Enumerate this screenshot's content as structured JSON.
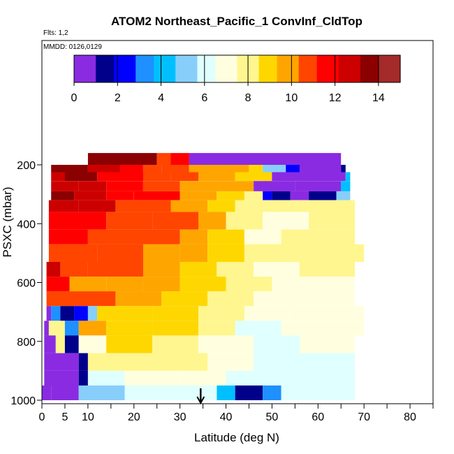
{
  "chart_data": {
    "type": "heatmap",
    "title": "ATOM2 Northeast_Pacific_1 ConvInf_CldTop",
    "annotations": [
      "Flts: 1,2",
      "MMDD: 0126,0129"
    ],
    "xlabel": "Latitude (deg N)",
    "ylabel": "PSXC (mbar)",
    "xlim": [
      0,
      85
    ],
    "ylim": [
      1000,
      50
    ],
    "y_reversed": true,
    "x_ticks": [
      0,
      5,
      10,
      20,
      30,
      40,
      50,
      60,
      70,
      80
    ],
    "x_tick_labels": [
      "0",
      "5",
      "10",
      "20",
      "30",
      "40",
      "50",
      "60",
      "70",
      "80"
    ],
    "x_minor_ticks": [
      15,
      25,
      35,
      45,
      55,
      65,
      75,
      85
    ],
    "y_ticks": [
      200,
      400,
      600,
      800,
      1000
    ],
    "y_tick_labels": [
      "200",
      "400",
      "600",
      "800",
      "1000"
    ],
    "colorbar": {
      "min": 0,
      "max": 15,
      "ticks": [
        0,
        2,
        4,
        6,
        8,
        10,
        12,
        14
      ],
      "tick_labels": [
        "0",
        "2",
        "4",
        "6",
        "8",
        "10",
        "12",
        "14"
      ],
      "colors": [
        "#8a2be2",
        "#00008b",
        "#0000ff",
        "#1e90ff",
        "#00bfff",
        "#87cefa",
        "#e0ffff",
        "#ffffe0",
        "#fff68f",
        "#ffd700",
        "#ffa500",
        "#ff4500",
        "#ff0000",
        "#cd0000",
        "#8b0000",
        "#a52a2a"
      ]
    },
    "marker": {
      "type": "arrow-down",
      "x": 34.5
    },
    "bands": [
      {
        "p_top": 160,
        "p_bot": 200,
        "segments": [
          [
            10,
            25,
            13.5
          ],
          [
            25,
            28,
            11
          ],
          [
            28,
            32,
            12
          ],
          [
            32,
            65,
            0
          ]
        ]
      },
      {
        "p_top": 200,
        "p_bot": 225,
        "segments": [
          [
            2,
            10,
            13.5
          ],
          [
            10,
            17,
            12.5
          ],
          [
            17,
            22,
            12
          ],
          [
            22,
            26,
            11
          ],
          [
            26,
            32,
            10.5
          ],
          [
            32,
            45,
            10
          ],
          [
            45,
            48,
            8.5
          ],
          [
            48,
            53,
            5.5
          ],
          [
            53,
            56,
            2
          ],
          [
            56,
            65,
            0
          ],
          [
            65,
            66,
            1
          ]
        ]
      },
      {
        "p_top": 225,
        "p_bot": 255,
        "segments": [
          [
            2,
            5,
            13
          ],
          [
            5,
            12,
            13.5
          ],
          [
            12,
            22,
            12
          ],
          [
            22,
            28,
            11
          ],
          [
            28,
            34,
            10.5
          ],
          [
            34,
            42,
            10
          ],
          [
            42,
            50,
            9
          ],
          [
            50,
            66,
            0
          ],
          [
            66,
            67,
            4
          ]
        ]
      },
      {
        "p_top": 255,
        "p_bot": 290,
        "segments": [
          [
            2,
            8,
            12.5
          ],
          [
            8,
            14,
            13
          ],
          [
            14,
            22,
            11.5
          ],
          [
            22,
            30,
            10.5
          ],
          [
            30,
            40,
            10
          ],
          [
            40,
            46,
            9.5
          ],
          [
            46,
            55,
            0
          ],
          [
            55,
            65,
            0
          ],
          [
            65,
            67,
            4
          ]
        ]
      },
      {
        "p_top": 290,
        "p_bot": 320,
        "segments": [
          [
            2,
            7,
            13.5
          ],
          [
            7,
            14,
            12.5
          ],
          [
            14,
            20,
            12
          ],
          [
            20,
            30,
            11.5
          ],
          [
            30,
            38,
            10
          ],
          [
            38,
            44,
            9
          ],
          [
            44,
            48,
            7.5
          ],
          [
            48,
            50,
            2
          ],
          [
            50,
            54,
            1
          ],
          [
            54,
            58,
            0
          ],
          [
            58,
            64,
            1
          ],
          [
            64,
            67,
            5
          ]
        ]
      },
      {
        "p_top": 320,
        "p_bot": 360,
        "segments": [
          [
            1.5,
            8,
            13
          ],
          [
            8,
            16,
            12.5
          ],
          [
            16,
            28,
            11
          ],
          [
            28,
            36,
            10
          ],
          [
            36,
            42,
            9
          ],
          [
            42,
            50,
            8
          ],
          [
            50,
            68,
            7.5
          ]
        ]
      },
      {
        "p_top": 360,
        "p_bot": 420,
        "segments": [
          [
            1.5,
            6,
            12
          ],
          [
            6,
            14,
            11.5
          ],
          [
            14,
            24,
            11
          ],
          [
            24,
            34,
            10.5
          ],
          [
            34,
            40,
            9.5
          ],
          [
            40,
            48,
            8
          ],
          [
            48,
            58,
            7
          ],
          [
            58,
            68,
            7.5
          ]
        ]
      },
      {
        "p_top": 420,
        "p_bot": 470,
        "segments": [
          [
            1.5,
            10,
            11.5
          ],
          [
            10,
            22,
            11
          ],
          [
            22,
            30,
            10.5
          ],
          [
            30,
            36,
            9.5
          ],
          [
            36,
            44,
            8.5
          ],
          [
            44,
            52,
            7
          ],
          [
            52,
            68,
            7.5
          ]
        ]
      },
      {
        "p_top": 470,
        "p_bot": 530,
        "segments": [
          [
            1.5,
            6,
            11
          ],
          [
            6,
            12,
            10.5
          ],
          [
            12,
            22,
            10.5
          ],
          [
            22,
            30,
            10
          ],
          [
            30,
            36,
            9.5
          ],
          [
            36,
            44,
            8.5
          ],
          [
            44,
            52,
            7.5
          ],
          [
            52,
            70,
            7.5
          ]
        ]
      },
      {
        "p_top": 530,
        "p_bot": 580,
        "segments": [
          [
            1,
            4,
            12.5
          ],
          [
            4,
            10,
            11
          ],
          [
            10,
            22,
            10.5
          ],
          [
            22,
            30,
            9.5
          ],
          [
            30,
            38,
            9
          ],
          [
            38,
            46,
            8
          ],
          [
            46,
            56,
            7
          ],
          [
            56,
            68,
            7.5
          ]
        ]
      },
      {
        "p_top": 580,
        "p_bot": 630,
        "segments": [
          [
            1,
            6,
            11.5
          ],
          [
            6,
            14,
            10
          ],
          [
            14,
            22,
            10
          ],
          [
            22,
            30,
            9.5
          ],
          [
            30,
            40,
            8.5
          ],
          [
            40,
            50,
            7.5
          ],
          [
            50,
            68,
            7
          ]
        ]
      },
      {
        "p_top": 630,
        "p_bot": 680,
        "segments": [
          [
            1,
            6,
            11
          ],
          [
            6,
            16,
            10.5
          ],
          [
            16,
            26,
            9.5
          ],
          [
            26,
            36,
            8.5
          ],
          [
            36,
            46,
            7.5
          ],
          [
            46,
            56,
            7
          ],
          [
            56,
            68,
            7
          ]
        ]
      },
      {
        "p_top": 680,
        "p_bot": 730,
        "segments": [
          [
            1,
            2,
            0
          ],
          [
            2,
            4,
            3
          ],
          [
            4,
            7,
            1
          ],
          [
            7,
            10,
            2
          ],
          [
            10,
            12,
            5
          ],
          [
            12,
            16,
            8.5
          ],
          [
            16,
            24,
            9
          ],
          [
            24,
            34,
            8.5
          ],
          [
            34,
            44,
            7.5
          ],
          [
            44,
            54,
            7
          ],
          [
            54,
            70,
            7
          ]
        ]
      },
      {
        "p_top": 730,
        "p_bot": 780,
        "segments": [
          [
            0.5,
            1.5,
            0
          ],
          [
            1.5,
            5,
            8
          ],
          [
            5,
            8,
            3
          ],
          [
            8,
            14,
            9.5
          ],
          [
            14,
            24,
            9
          ],
          [
            24,
            34,
            8.5
          ],
          [
            34,
            42,
            7.5
          ],
          [
            42,
            52,
            6.5
          ],
          [
            52,
            70,
            7
          ]
        ]
      },
      {
        "p_top": 780,
        "p_bot": 840,
        "segments": [
          [
            0.5,
            3,
            0
          ],
          [
            3,
            5,
            8
          ],
          [
            5,
            8,
            1
          ],
          [
            8,
            14,
            7
          ],
          [
            14,
            24,
            8.5
          ],
          [
            24,
            34,
            8
          ],
          [
            34,
            46,
            7
          ],
          [
            46,
            56,
            6.5
          ],
          [
            56,
            68,
            7
          ]
        ]
      },
      {
        "p_top": 840,
        "p_bot": 900,
        "segments": [
          [
            0.5,
            8,
            0
          ],
          [
            8,
            10,
            1
          ],
          [
            10,
            18,
            7.5
          ],
          [
            18,
            28,
            8
          ],
          [
            28,
            36,
            7.5
          ],
          [
            36,
            46,
            7
          ],
          [
            46,
            56,
            6.5
          ],
          [
            56,
            68,
            6.5
          ]
        ]
      },
      {
        "p_top": 900,
        "p_bot": 950,
        "segments": [
          [
            0.5,
            8,
            0
          ],
          [
            8,
            10,
            1.5
          ],
          [
            10,
            18,
            6.5
          ],
          [
            18,
            30,
            7
          ],
          [
            30,
            40,
            7
          ],
          [
            40,
            50,
            6.5
          ],
          [
            50,
            68,
            6.5
          ]
        ]
      },
      {
        "p_top": 950,
        "p_bot": 1000,
        "segments": [
          [
            0,
            2,
            0
          ],
          [
            2,
            8,
            0.5
          ],
          [
            8,
            18,
            5.5
          ],
          [
            18,
            26,
            6.5
          ],
          [
            26,
            38,
            6.5
          ],
          [
            38,
            42,
            4
          ],
          [
            42,
            48,
            1
          ],
          [
            48,
            52,
            3
          ],
          [
            52,
            68,
            6.5
          ]
        ]
      }
    ]
  }
}
